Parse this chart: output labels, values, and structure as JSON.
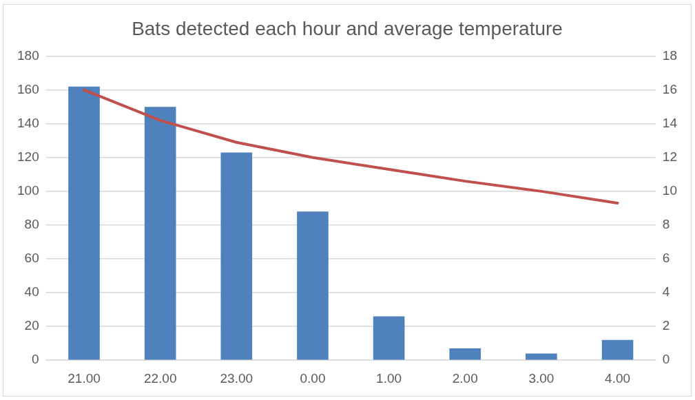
{
  "chart_data": {
    "type": "bar",
    "title": "Bats detected each hour and average temperature",
    "categories": [
      "21.00",
      "22.00",
      "23.00",
      "0.00",
      "1.00",
      "2.00",
      "3.00",
      "4.00"
    ],
    "series": [
      {
        "color": "#4f81bd",
        "values": [
          162,
          150,
          123,
          88,
          26,
          7,
          4,
          12
        ]
      },
      {
        "type": "line",
        "axis": "y2",
        "color": "#c0504d",
        "marker": "none",
        "values": [
          16.0,
          14.2,
          12.9,
          12.0,
          11.3,
          10.6,
          10.0,
          9.3
        ]
      }
    ],
    "ylim": [
      0,
      180
    ],
    "yticks": [
      0,
      20,
      40,
      60,
      80,
      100,
      120,
      140,
      160,
      180
    ],
    "y2lim": [
      0,
      18
    ],
    "y2ticks": [
      0,
      2,
      4,
      6,
      8,
      10,
      12,
      14,
      16,
      18
    ],
    "grid": "y",
    "legend": false
  }
}
